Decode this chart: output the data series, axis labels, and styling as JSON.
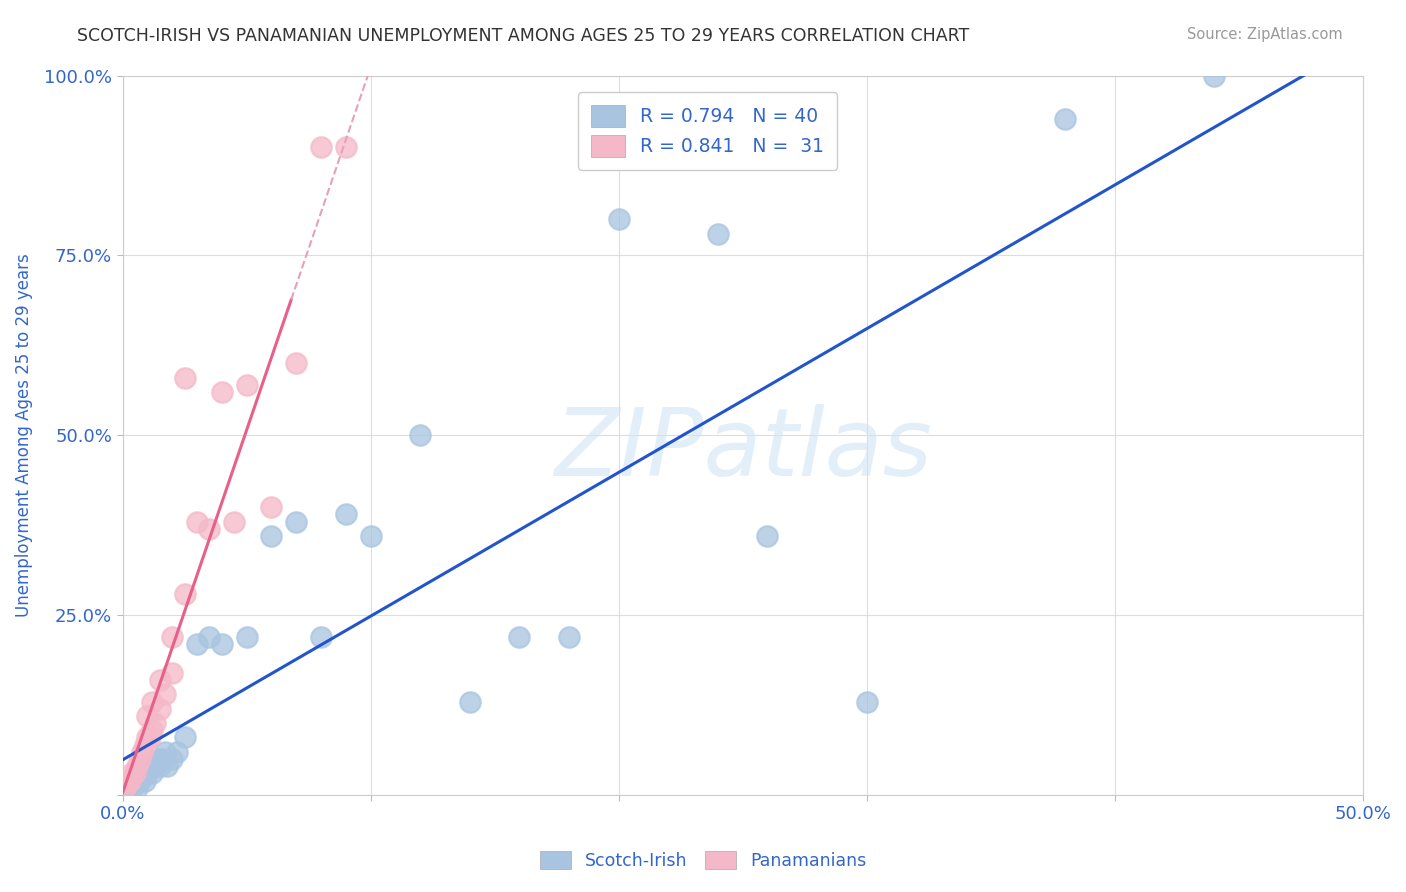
{
  "title": "SCOTCH-IRISH VS PANAMANIAN UNEMPLOYMENT AMONG AGES 25 TO 29 YEARS CORRELATION CHART",
  "source": "Source: ZipAtlas.com",
  "ylabel": "Unemployment Among Ages 25 to 29 years",
  "xlim": [
    0,
    0.5
  ],
  "ylim": [
    0,
    1.0
  ],
  "xticks": [
    0.0,
    0.1,
    0.2,
    0.3,
    0.4,
    0.5
  ],
  "yticks": [
    0.0,
    0.25,
    0.5,
    0.75,
    1.0
  ],
  "xticklabels": [
    "0.0%",
    "",
    "",
    "",
    "",
    "50.0%"
  ],
  "yticklabels": [
    "",
    "25.0%",
    "50.0%",
    "75.0%",
    "100.0%"
  ],
  "watermark": "ZIPatlas",
  "scotch_irish_color": "#a8c4e0",
  "panamanian_color": "#f4b8c8",
  "scotch_irish_line_color": "#2255cc",
  "panamanian_line_color": "#e8608a",
  "panamanian_dash_color": "#e8a0b8",
  "scotch_irish_R": 0.794,
  "scotch_irish_N": 40,
  "panamanian_R": 0.841,
  "panamanian_N": 31,
  "si_x": [
    0.001,
    0.002,
    0.003,
    0.004,
    0.005,
    0.006,
    0.007,
    0.008,
    0.009,
    0.01,
    0.011,
    0.012,
    0.013,
    0.014,
    0.015,
    0.016,
    0.017,
    0.018,
    0.02,
    0.022,
    0.025,
    0.03,
    0.035,
    0.04,
    0.05,
    0.06,
    0.07,
    0.08,
    0.09,
    0.1,
    0.12,
    0.14,
    0.16,
    0.18,
    0.2,
    0.24,
    0.26,
    0.3,
    0.38,
    0.44
  ],
  "si_y": [
    0.01,
    0.01,
    0.02,
    0.01,
    0.02,
    0.01,
    0.02,
    0.03,
    0.02,
    0.03,
    0.04,
    0.03,
    0.04,
    0.05,
    0.04,
    0.05,
    0.06,
    0.04,
    0.05,
    0.06,
    0.08,
    0.21,
    0.22,
    0.21,
    0.22,
    0.36,
    0.38,
    0.22,
    0.39,
    0.36,
    0.5,
    0.13,
    0.22,
    0.22,
    0.8,
    0.78,
    0.36,
    0.13,
    0.94,
    1.0
  ],
  "pan_x": [
    0.001,
    0.002,
    0.003,
    0.004,
    0.005,
    0.006,
    0.007,
    0.008,
    0.009,
    0.01,
    0.011,
    0.012,
    0.013,
    0.015,
    0.017,
    0.02,
    0.025,
    0.03,
    0.035,
    0.04,
    0.045,
    0.05,
    0.06,
    0.07,
    0.08,
    0.09,
    0.01,
    0.012,
    0.015,
    0.02,
    0.025
  ],
  "pan_y": [
    0.01,
    0.02,
    0.02,
    0.03,
    0.03,
    0.04,
    0.05,
    0.06,
    0.07,
    0.08,
    0.08,
    0.09,
    0.1,
    0.12,
    0.14,
    0.17,
    0.58,
    0.38,
    0.37,
    0.56,
    0.38,
    0.57,
    0.4,
    0.6,
    0.9,
    0.9,
    0.11,
    0.13,
    0.16,
    0.22,
    0.28
  ],
  "background_color": "#ffffff",
  "grid_color": "#dddddd",
  "title_color": "#333333",
  "axis_label_color": "#3366cc",
  "tick_color": "#3366cc"
}
